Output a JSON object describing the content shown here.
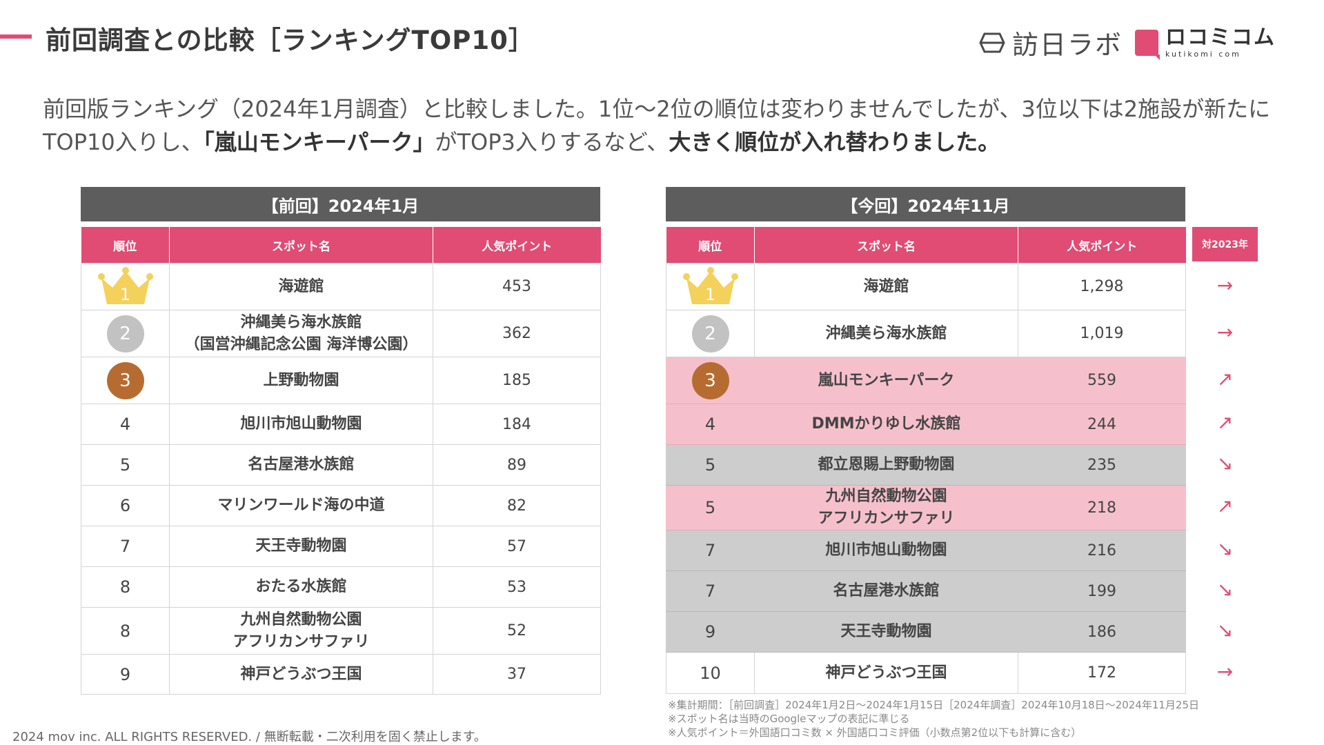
{
  "page": {
    "title": "前回調査との比較［ランキングTOP10］",
    "logo_hounichi": "訪日ラボ",
    "logo_kuchikomi": "ロコミコム",
    "logo_kuchikomi_url": "kutikomi com",
    "lead_part1": "前回版ランキング（2024年1月調査）と比較しました。1位〜2位の順位は変わりませんでしたが、3位以下は2施設が新たにTOP10入りし、",
    "lead_bold1": "「嵐山モンキーパーク」",
    "lead_part2": "がTOP3入りするなど、",
    "lead_bold2": "大きく順位が入れ替わりました。",
    "footer": "2024 mov inc. ALL RIGHTS RESERVED. / 無断転載・二次利用を固く禁止します。",
    "notes": [
      "※集計期間：［前回調査］2024年1月2日〜2024年1月15日［2024年調査］2024年10月18日〜2024年11月25日",
      "※スポット名は当時のGoogleマップの表記に準じる",
      "※人気ポイント＝外国語口コミ数 × 外国語口コミ評価（小数点第2位以下も計算に含む）"
    ]
  },
  "columns": {
    "rank": "順位",
    "spot": "スポット名",
    "points": "人気ポイント",
    "trend": "対2023年"
  },
  "previous": {
    "header": "【前回】2024年1月",
    "rows": [
      {
        "rank": "1",
        "name": "海遊館",
        "points": "453"
      },
      {
        "rank": "2",
        "name": "沖縄美ら海水族館",
        "name2": "（国営沖縄記念公園 海洋博公園）",
        "points": "362"
      },
      {
        "rank": "3",
        "name": "上野動物園",
        "points": "185"
      },
      {
        "rank": "4",
        "name": "旭川市旭山動物園",
        "points": "184"
      },
      {
        "rank": "5",
        "name": "名古屋港水族館",
        "points": "89"
      },
      {
        "rank": "6",
        "name": "マリンワールド海の中道",
        "points": "82"
      },
      {
        "rank": "7",
        "name": "天王寺動物園",
        "points": "57"
      },
      {
        "rank": "8",
        "name": "おたる水族館",
        "points": "53"
      },
      {
        "rank": "8",
        "name": "九州自然動物公園",
        "name2": "アフリカンサファリ",
        "points": "52"
      },
      {
        "rank": "9",
        "name": "神戸どうぶつ王国",
        "points": "37"
      }
    ]
  },
  "current": {
    "header": "【今回】2024年11月",
    "rows": [
      {
        "rank": "1",
        "name": "海遊館",
        "points": "1,298",
        "trend": "→",
        "trend_name": "arrow-right-icon"
      },
      {
        "rank": "2",
        "name": "沖縄美ら海水族館",
        "points": "1,019",
        "trend": "→",
        "trend_name": "arrow-right-icon"
      },
      {
        "rank": "3",
        "name": "嵐山モンキーパーク",
        "points": "559",
        "trend": "↗",
        "trend_name": "arrow-up-right-icon"
      },
      {
        "rank": "4",
        "name": "DMMかりゆし水族館",
        "points": "244",
        "trend": "↗",
        "trend_name": "arrow-up-right-icon"
      },
      {
        "rank": "5",
        "name": "都立恩賜上野動物園",
        "points": "235",
        "trend": "↘",
        "trend_name": "arrow-down-right-icon"
      },
      {
        "rank": "5",
        "name": "九州自然動物公園",
        "name2": "アフリカンサファリ",
        "points": "218",
        "trend": "↗",
        "trend_name": "arrow-up-right-icon"
      },
      {
        "rank": "7",
        "name": "旭川市旭山動物園",
        "points": "216",
        "trend": "↘",
        "trend_name": "arrow-down-right-icon"
      },
      {
        "rank": "7",
        "name": "名古屋港水族館",
        "points": "199",
        "trend": "↘",
        "trend_name": "arrow-down-right-icon"
      },
      {
        "rank": "9",
        "name": "天王寺動物園",
        "points": "186",
        "trend": "↘",
        "trend_name": "arrow-down-right-icon"
      },
      {
        "rank": "10",
        "name": "神戸どうぶつ王国",
        "points": "172",
        "trend": "→",
        "trend_name": "arrow-right-icon"
      }
    ]
  },
  "colors": {
    "accent": "#e04c74",
    "header_gray": "#5d5d5d",
    "up_highlight": "#f5c0cc",
    "down_highlight": "#cdcdcd",
    "gold": "#f4d15a",
    "silver": "#c2c2c2",
    "bronze": "#b66c31"
  }
}
